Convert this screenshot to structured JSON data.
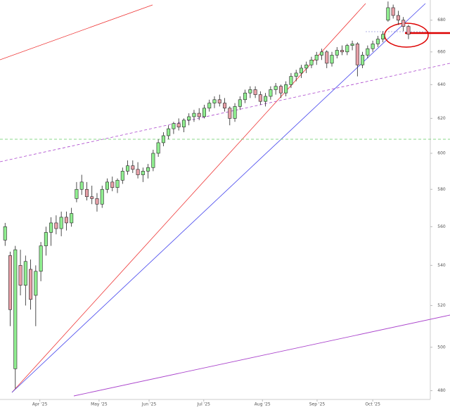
{
  "chart_data": {
    "type": "candlestick",
    "log_scale": true,
    "grid": false,
    "up_color": "#90ee90",
    "down_color": "#e8a0a8",
    "x": [
      1,
      2,
      3,
      4,
      5,
      6,
      7,
      8,
      9,
      10,
      11,
      12,
      13,
      14,
      15,
      16,
      17,
      18,
      19,
      20,
      21,
      22,
      23,
      24,
      25,
      26,
      27,
      28,
      29,
      30,
      31,
      32,
      33,
      34,
      35,
      36,
      37,
      38,
      39,
      40,
      41,
      42,
      43,
      44,
      45,
      46,
      47,
      48,
      49,
      50,
      51,
      52,
      53,
      54,
      55,
      56,
      57,
      58,
      59,
      60,
      61,
      62,
      63,
      64,
      65,
      66,
      67,
      68,
      69,
      70,
      71,
      72,
      73,
      74,
      75,
      76,
      77,
      78,
      79,
      80
    ],
    "open": [
      553,
      545,
      490,
      540,
      530,
      538,
      525,
      537,
      550,
      557,
      562,
      559,
      565,
      562,
      575,
      580,
      580,
      576,
      575,
      572,
      580,
      584,
      581,
      585,
      590,
      593,
      591,
      588,
      590,
      592,
      600,
      606,
      610,
      614,
      617,
      615,
      619,
      621,
      623,
      621,
      626,
      629,
      631,
      629,
      626,
      620,
      627,
      631,
      635,
      637,
      634,
      630,
      633,
      637,
      639,
      635,
      640,
      645,
      647,
      650,
      652,
      655,
      658,
      660,
      653,
      658,
      661,
      660,
      664,
      665,
      652,
      658,
      662,
      665,
      668,
      680,
      688,
      683,
      680,
      676
    ],
    "high": [
      562,
      547,
      550,
      548,
      545,
      543,
      540,
      552,
      560,
      565,
      566,
      568,
      568,
      570,
      584,
      588,
      584,
      582,
      578,
      582,
      586,
      587,
      586,
      592,
      596,
      596,
      595,
      592,
      594,
      602,
      608,
      612,
      616,
      618,
      620,
      620,
      623,
      625,
      626,
      628,
      631,
      633,
      634,
      632,
      627,
      629,
      633,
      637,
      639,
      639,
      636,
      635,
      639,
      641,
      640,
      642,
      647,
      649,
      652,
      654,
      657,
      660,
      662,
      661,
      660,
      663,
      664,
      665,
      667,
      666,
      660,
      664,
      667,
      670,
      673,
      692,
      690,
      686,
      682,
      677
    ],
    "low": [
      550,
      510,
      481,
      525,
      520,
      518,
      510,
      532,
      545,
      550,
      556,
      555,
      558,
      560,
      573,
      577,
      574,
      572,
      568,
      570,
      578,
      579,
      578,
      583,
      588,
      589,
      586,
      584,
      586,
      590,
      598,
      604,
      608,
      611,
      613,
      612,
      616,
      618,
      619,
      620,
      624,
      626,
      627,
      624,
      616,
      618,
      625,
      629,
      632,
      632,
      628,
      627,
      631,
      634,
      632,
      633,
      638,
      642,
      644,
      647,
      650,
      652,
      655,
      650,
      651,
      656,
      658,
      658,
      661,
      645,
      650,
      656,
      660,
      663,
      666,
      679,
      681,
      677,
      673,
      668
    ],
    "close": [
      560,
      518,
      548,
      530,
      542,
      523,
      537,
      550,
      557,
      562,
      559,
      565,
      562,
      567,
      580,
      584,
      576,
      575,
      572,
      580,
      584,
      581,
      585,
      590,
      593,
      591,
      588,
      590,
      592,
      600,
      606,
      610,
      614,
      617,
      615,
      619,
      621,
      623,
      621,
      626,
      629,
      631,
      629,
      626,
      620,
      627,
      631,
      635,
      637,
      634,
      630,
      633,
      637,
      639,
      635,
      640,
      645,
      647,
      650,
      652,
      655,
      658,
      660,
      653,
      658,
      661,
      660,
      664,
      665,
      652,
      658,
      662,
      665,
      668,
      671,
      688,
      683,
      680,
      676,
      671
    ],
    "xlim": [
      0,
      84
    ],
    "ylim": [
      477,
      693
    ],
    "yticks": [
      480,
      500,
      520,
      540,
      560,
      580,
      600,
      620,
      640,
      660,
      680
    ],
    "xticks": [
      {
        "value": 7.8,
        "label": "Apr '25"
      },
      {
        "value": 19.4,
        "label": "May '25"
      },
      {
        "value": 29.2,
        "label": "Jun '25"
      },
      {
        "value": 39.9,
        "label": "Jul '25"
      },
      {
        "value": 51.4,
        "label": "Aug '25"
      },
      {
        "value": 62.1,
        "label": "Sep '25"
      },
      {
        "value": 73.0,
        "label": "Oct '25"
      }
    ]
  }
}
